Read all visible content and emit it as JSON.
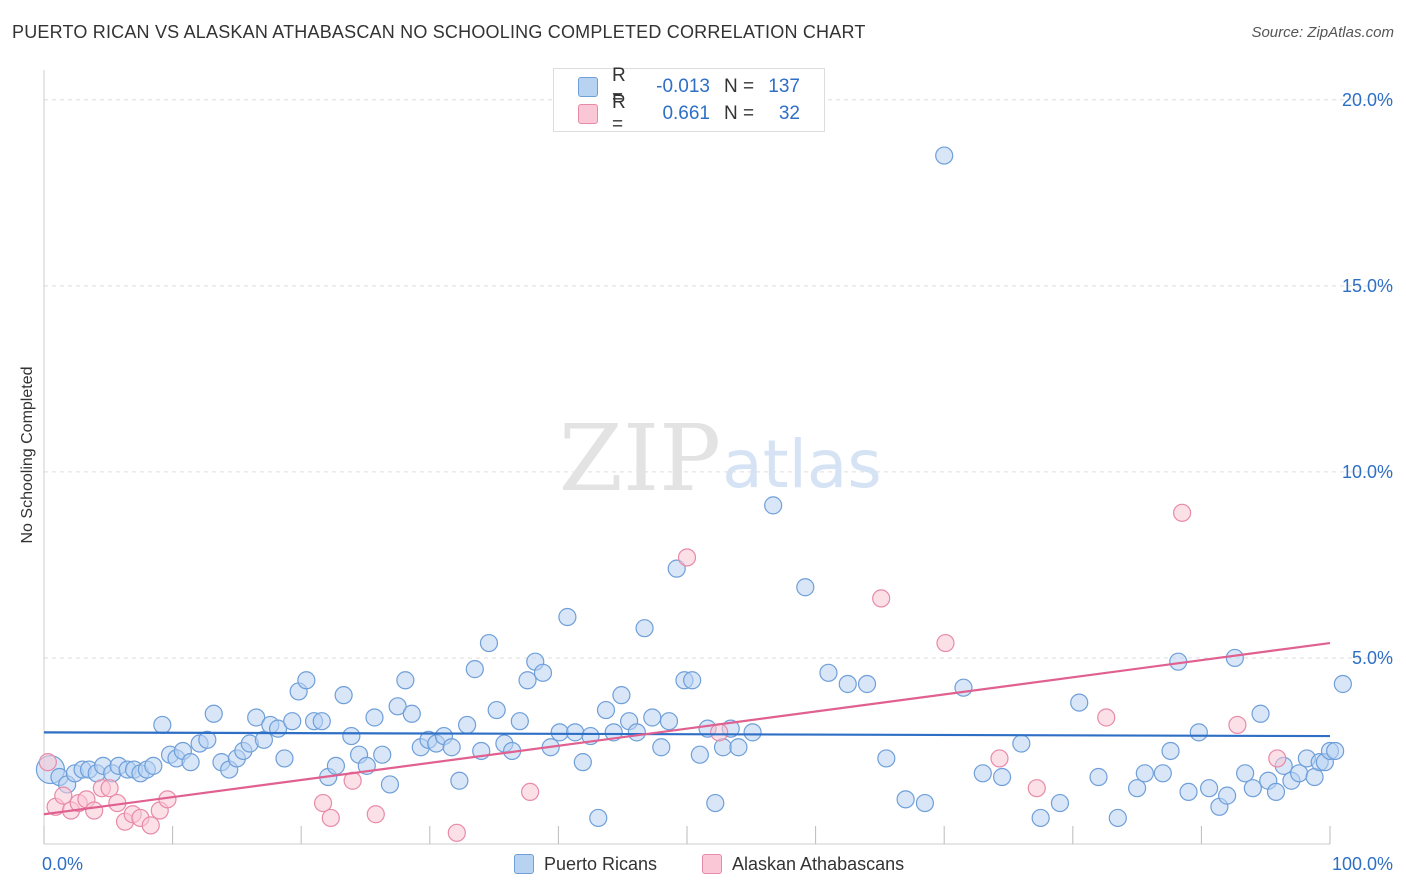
{
  "header": {
    "title": "PUERTO RICAN VS ALASKAN ATHABASCAN NO SCHOOLING COMPLETED CORRELATION CHART",
    "source": "Source: ZipAtlas.com"
  },
  "watermark": {
    "zip": "ZIP",
    "atlas": "atlas"
  },
  "colors": {
    "blue_fill": "#b8d2f2",
    "blue_stroke": "#6f9fd9",
    "blue_line": "#2e6fc5",
    "pink_fill": "#f9c7d6",
    "pink_stroke": "#e88aa8",
    "pink_line": "#e0608f",
    "tick_text": "#2e6fc5",
    "grid": "#dddddd"
  },
  "stats": [
    {
      "series": "Puerto Ricans",
      "r_label": "R =",
      "r_value": "-0.013",
      "n_label": "N =",
      "n_value": "137"
    },
    {
      "series": "Alaskan Athabascans",
      "r_label": "R =",
      "r_value": "0.661",
      "n_label": "N =",
      "n_value": "32"
    }
  ],
  "legend": [
    "Puerto Ricans",
    "Alaskan Athabascans"
  ],
  "chart_data": {
    "type": "scatter",
    "title": "PUERTO RICAN VS ALASKAN ATHABASCAN NO SCHOOLING COMPLETED CORRELATION CHART",
    "xlabel": "",
    "ylabel": "No Schooling Completed",
    "xlim": [
      0,
      100
    ],
    "ylim": [
      0,
      20.8
    ],
    "x_ticks": [
      0,
      10,
      20,
      30,
      40,
      50,
      60,
      70,
      80,
      90,
      100
    ],
    "x_tick_labels": [
      {
        "x": 0,
        "label": "0.0%"
      },
      {
        "x": 100,
        "label": "100.0%"
      }
    ],
    "y_ticks": [
      {
        "y": 5,
        "label": "5.0%"
      },
      {
        "y": 10,
        "label": "10.0%"
      },
      {
        "y": 15,
        "label": "15.0%"
      },
      {
        "y": 20,
        "label": "20.0%"
      }
    ],
    "grid": true,
    "series": [
      {
        "name": "Puerto Ricans",
        "trend": {
          "x": [
            0,
            100
          ],
          "y": [
            3.0,
            2.9
          ]
        },
        "points": [
          [
            0.5,
            2.0
          ],
          [
            1.2,
            1.8
          ],
          [
            1.8,
            1.6
          ],
          [
            2.4,
            1.9
          ],
          [
            3.0,
            2.0
          ],
          [
            3.5,
            2.0
          ],
          [
            4.1,
            1.9
          ],
          [
            4.6,
            2.1
          ],
          [
            5.3,
            1.9
          ],
          [
            5.8,
            2.1
          ],
          [
            6.5,
            2.0
          ],
          [
            7.0,
            2.0
          ],
          [
            7.5,
            1.9
          ],
          [
            8.0,
            2.0
          ],
          [
            8.5,
            2.1
          ],
          [
            9.2,
            3.2
          ],
          [
            9.8,
            2.4
          ],
          [
            10.3,
            2.3
          ],
          [
            10.8,
            2.5
          ],
          [
            11.4,
            2.2
          ],
          [
            12.1,
            2.7
          ],
          [
            12.7,
            2.8
          ],
          [
            13.2,
            3.5
          ],
          [
            13.8,
            2.2
          ],
          [
            14.4,
            2.0
          ],
          [
            15.0,
            2.3
          ],
          [
            15.5,
            2.5
          ],
          [
            16.0,
            2.7
          ],
          [
            16.5,
            3.4
          ],
          [
            17.1,
            2.8
          ],
          [
            17.6,
            3.2
          ],
          [
            18.2,
            3.1
          ],
          [
            18.7,
            2.3
          ],
          [
            19.3,
            3.3
          ],
          [
            19.8,
            4.1
          ],
          [
            20.4,
            4.4
          ],
          [
            21.0,
            3.3
          ],
          [
            21.6,
            3.3
          ],
          [
            22.1,
            1.8
          ],
          [
            22.7,
            2.1
          ],
          [
            23.3,
            4.0
          ],
          [
            23.9,
            2.9
          ],
          [
            24.5,
            2.4
          ],
          [
            25.1,
            2.1
          ],
          [
            25.7,
            3.4
          ],
          [
            26.3,
            2.4
          ],
          [
            26.9,
            1.6
          ],
          [
            27.5,
            3.7
          ],
          [
            28.1,
            4.4
          ],
          [
            28.6,
            3.5
          ],
          [
            29.3,
            2.6
          ],
          [
            29.9,
            2.8
          ],
          [
            30.5,
            2.7
          ],
          [
            31.1,
            2.9
          ],
          [
            31.7,
            2.6
          ],
          [
            32.3,
            1.7
          ],
          [
            32.9,
            3.2
          ],
          [
            33.5,
            4.7
          ],
          [
            34.0,
            2.5
          ],
          [
            34.6,
            5.4
          ],
          [
            35.2,
            3.6
          ],
          [
            35.8,
            2.7
          ],
          [
            36.4,
            2.5
          ],
          [
            37.0,
            3.3
          ],
          [
            37.6,
            4.4
          ],
          [
            38.2,
            4.9
          ],
          [
            38.8,
            4.6
          ],
          [
            39.4,
            2.6
          ],
          [
            40.1,
            3.0
          ],
          [
            40.7,
            6.1
          ],
          [
            41.3,
            3.0
          ],
          [
            41.9,
            2.2
          ],
          [
            42.5,
            2.9
          ],
          [
            43.1,
            0.7
          ],
          [
            43.7,
            3.6
          ],
          [
            44.3,
            3.0
          ],
          [
            44.9,
            4.0
          ],
          [
            45.5,
            3.3
          ],
          [
            46.1,
            3.0
          ],
          [
            46.7,
            5.8
          ],
          [
            47.3,
            3.4
          ],
          [
            48.0,
            2.6
          ],
          [
            48.6,
            3.3
          ],
          [
            49.2,
            7.4
          ],
          [
            49.8,
            4.4
          ],
          [
            50.4,
            4.4
          ],
          [
            51.0,
            2.4
          ],
          [
            51.6,
            3.1
          ],
          [
            52.2,
            1.1
          ],
          [
            52.8,
            2.6
          ],
          [
            53.4,
            3.1
          ],
          [
            54.0,
            2.6
          ],
          [
            55.1,
            3.0
          ],
          [
            56.7,
            9.1
          ],
          [
            59.2,
            6.9
          ],
          [
            61.0,
            4.6
          ],
          [
            62.5,
            4.3
          ],
          [
            64.0,
            4.3
          ],
          [
            65.5,
            2.3
          ],
          [
            67.0,
            1.2
          ],
          [
            68.5,
            1.1
          ],
          [
            70.0,
            18.5
          ],
          [
            71.5,
            4.2
          ],
          [
            73.0,
            1.9
          ],
          [
            74.5,
            1.8
          ],
          [
            76.0,
            2.7
          ],
          [
            77.5,
            0.7
          ],
          [
            79.0,
            1.1
          ],
          [
            80.5,
            3.8
          ],
          [
            82.0,
            1.8
          ],
          [
            83.5,
            0.7
          ],
          [
            85.0,
            1.5
          ],
          [
            85.6,
            1.9
          ],
          [
            87.0,
            1.9
          ],
          [
            87.6,
            2.5
          ],
          [
            88.2,
            4.9
          ],
          [
            89.0,
            1.4
          ],
          [
            89.8,
            3.0
          ],
          [
            90.6,
            1.5
          ],
          [
            91.4,
            1.0
          ],
          [
            92.0,
            1.3
          ],
          [
            92.6,
            5.0
          ],
          [
            93.4,
            1.9
          ],
          [
            94.0,
            1.5
          ],
          [
            94.6,
            3.5
          ],
          [
            95.2,
            1.7
          ],
          [
            95.8,
            1.4
          ],
          [
            96.4,
            2.1
          ],
          [
            97.0,
            1.7
          ],
          [
            97.6,
            1.9
          ],
          [
            98.2,
            2.3
          ],
          [
            98.8,
            1.8
          ],
          [
            99.2,
            2.2
          ],
          [
            99.6,
            2.2
          ],
          [
            100.0,
            2.5
          ],
          [
            100.4,
            2.5
          ],
          [
            101.0,
            4.3
          ]
        ]
      },
      {
        "name": "Alaskan Athabascans",
        "trend": {
          "x": [
            0,
            100
          ],
          "y": [
            0.8,
            5.4
          ]
        },
        "points": [
          [
            0.3,
            2.2
          ],
          [
            0.9,
            1.0
          ],
          [
            1.5,
            1.3
          ],
          [
            2.1,
            0.9
          ],
          [
            2.7,
            1.1
          ],
          [
            3.3,
            1.2
          ],
          [
            3.9,
            0.9
          ],
          [
            4.5,
            1.5
          ],
          [
            5.1,
            1.5
          ],
          [
            5.7,
            1.1
          ],
          [
            6.3,
            0.6
          ],
          [
            6.9,
            0.8
          ],
          [
            7.5,
            0.7
          ],
          [
            8.3,
            0.5
          ],
          [
            9.0,
            0.9
          ],
          [
            9.6,
            1.2
          ],
          [
            21.7,
            1.1
          ],
          [
            22.3,
            0.7
          ],
          [
            24.0,
            1.7
          ],
          [
            25.8,
            0.8
          ],
          [
            32.1,
            0.3
          ],
          [
            37.8,
            1.4
          ],
          [
            50.0,
            7.7
          ],
          [
            52.5,
            3.0
          ],
          [
            65.1,
            6.6
          ],
          [
            70.1,
            5.4
          ],
          [
            74.3,
            2.3
          ],
          [
            77.2,
            1.5
          ],
          [
            82.6,
            3.4
          ],
          [
            88.5,
            8.9
          ],
          [
            92.8,
            3.2
          ],
          [
            95.9,
            2.3
          ]
        ]
      }
    ]
  }
}
